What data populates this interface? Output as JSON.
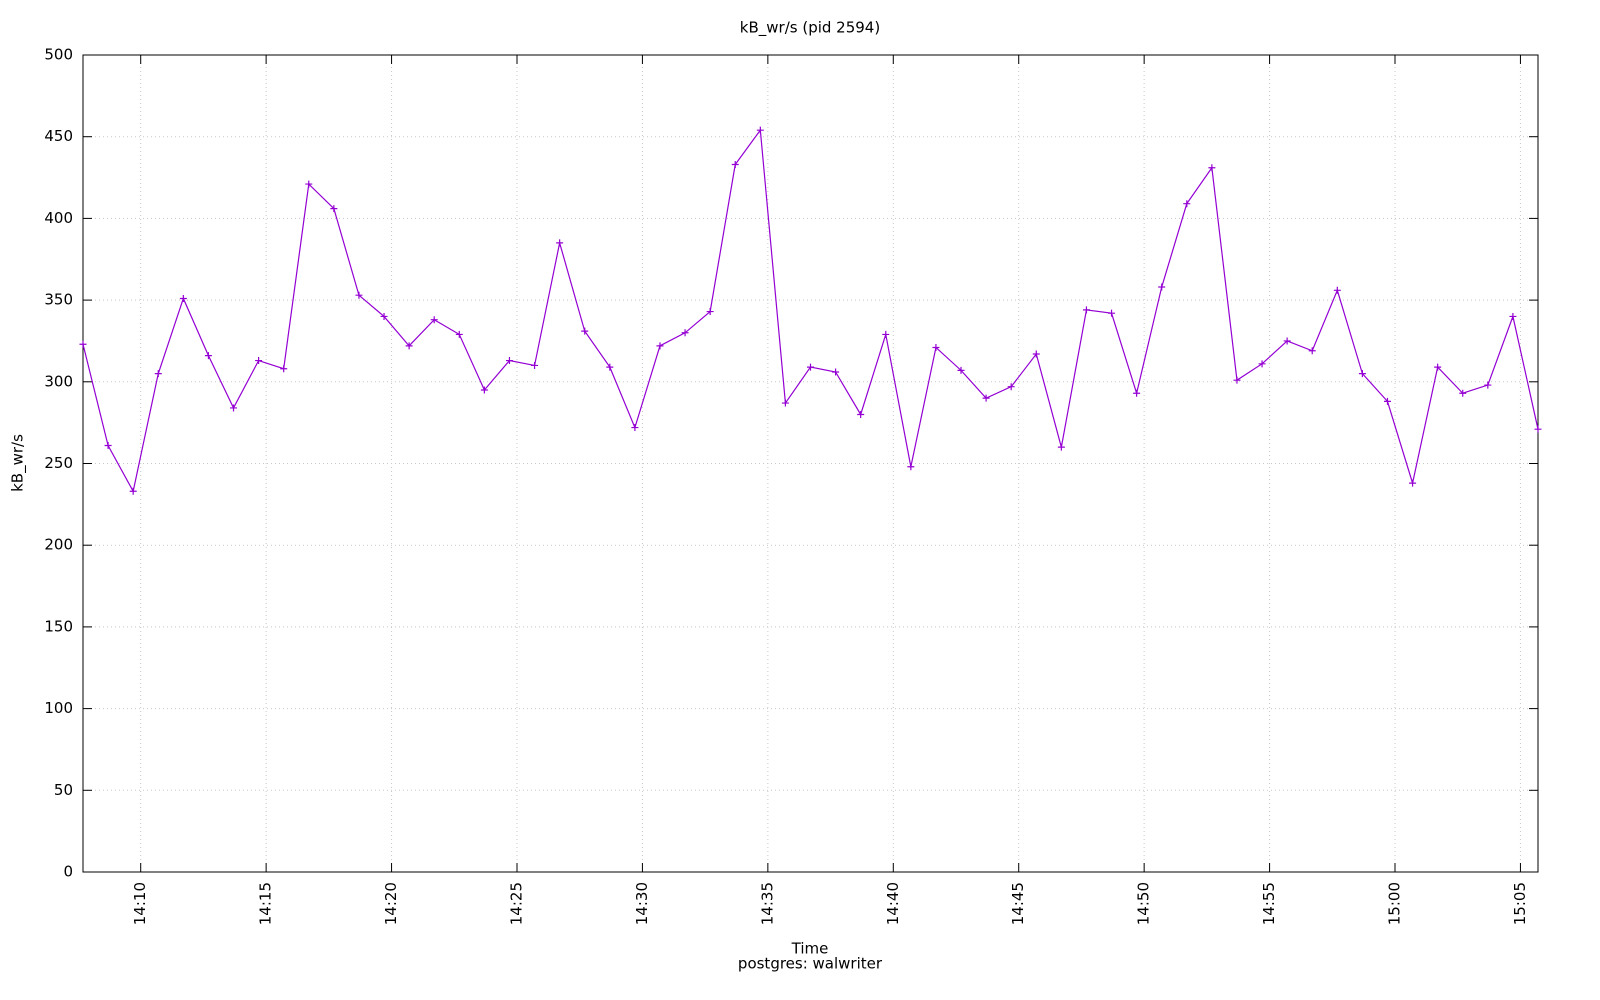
{
  "chart_data": {
    "type": "line",
    "title": "kB_wr/s (pid 2594)",
    "x_label": "Time",
    "x_sublabel": "postgres: walwriter",
    "y_label": "kB_wr/s",
    "x": [
      847.7,
      848.7,
      849.7,
      850.7,
      851.7,
      852.7,
      853.7,
      854.7,
      855.7,
      856.7,
      857.7,
      858.7,
      859.7,
      860.7,
      861.7,
      862.7,
      863.7,
      864.7,
      865.7,
      866.7,
      867.7,
      868.7,
      869.7,
      870.7,
      871.7,
      872.7,
      873.7,
      874.7,
      875.7,
      876.7,
      877.7,
      878.7,
      879.7,
      880.7,
      881.7,
      882.7,
      883.7,
      884.7,
      885.7,
      886.7,
      887.7,
      888.7,
      889.7,
      890.7,
      891.7,
      892.7,
      893.7,
      894.7,
      895.7,
      896.7,
      897.7,
      898.7,
      899.7,
      900.7,
      901.7,
      902.7,
      903.7,
      904.7,
      905.7
    ],
    "series": [
      {
        "color": "#9400d3",
        "values": [
          323,
          261,
          233,
          305,
          351,
          316,
          284,
          313,
          308,
          421,
          406,
          353,
          340,
          322,
          338,
          329,
          295,
          313,
          310,
          385,
          331,
          309,
          272,
          322,
          330,
          343,
          433,
          454,
          287,
          309,
          306,
          280,
          329,
          248,
          321,
          307,
          290,
          297,
          317,
          260,
          344,
          342,
          293,
          358,
          409,
          431,
          301,
          311,
          325,
          319,
          356,
          305,
          288,
          238,
          309,
          293,
          298,
          340,
          271
        ]
      }
    ],
    "xlim": [
      847.7,
      905.7
    ],
    "xticks": [
      {
        "value": 850,
        "label": "14:10"
      },
      {
        "value": 855,
        "label": "14:15"
      },
      {
        "value": 860,
        "label": "14:20"
      },
      {
        "value": 865,
        "label": "14:25"
      },
      {
        "value": 870,
        "label": "14:30"
      },
      {
        "value": 875,
        "label": "14:35"
      },
      {
        "value": 880,
        "label": "14:40"
      },
      {
        "value": 885,
        "label": "14:45"
      },
      {
        "value": 890,
        "label": "14:50"
      },
      {
        "value": 895,
        "label": "14:55"
      },
      {
        "value": 900,
        "label": "15:00"
      },
      {
        "value": 905,
        "label": "15:05"
      }
    ],
    "ylim": [
      0,
      500
    ],
    "yticks": [
      0,
      50,
      100,
      150,
      200,
      250,
      300,
      350,
      400,
      450,
      500
    ],
    "grid": true
  }
}
